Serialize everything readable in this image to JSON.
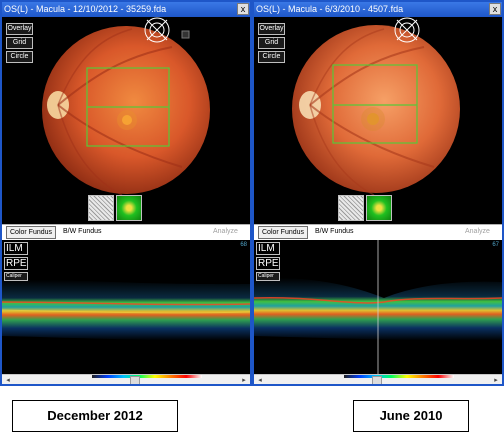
{
  "windows": [
    {
      "title": "OS(L) - Macula - 12/10/2012 - 35259.fda",
      "overlay_buttons": [
        "Overlay",
        "Grid",
        "Circle"
      ],
      "tabs": [
        "Color Fundus",
        "B/W Fundus",
        "Analyze"
      ],
      "oct_labels": [
        "ILM",
        "RPE"
      ],
      "caliper_label": "Caliper",
      "slice_number": "68",
      "close_glyph": "x"
    },
    {
      "title": "OS(L) - Macula - 6/3/2010 - 4507.fda",
      "overlay_buttons": [
        "Overlay",
        "Grid",
        "Circle"
      ],
      "tabs": [
        "Color Fundus",
        "B/W Fundus",
        "Analyze"
      ],
      "oct_labels": [
        "ILM",
        "RPE"
      ],
      "caliper_label": "Caliper",
      "slice_number": "67",
      "close_glyph": "x"
    }
  ],
  "captions": {
    "left": "December 2012",
    "right": "June  2010"
  },
  "colors": {
    "title_bar": "#1e56c8",
    "grid_overlay": "#58c838",
    "fundus_orange": "#e0622a"
  },
  "icons": {
    "close": "close-icon",
    "thumbnail_bw": "bw-fundus-thumbnail",
    "thumbnail_color": "color-thumbnail",
    "target": "crosshair-target-icon"
  }
}
